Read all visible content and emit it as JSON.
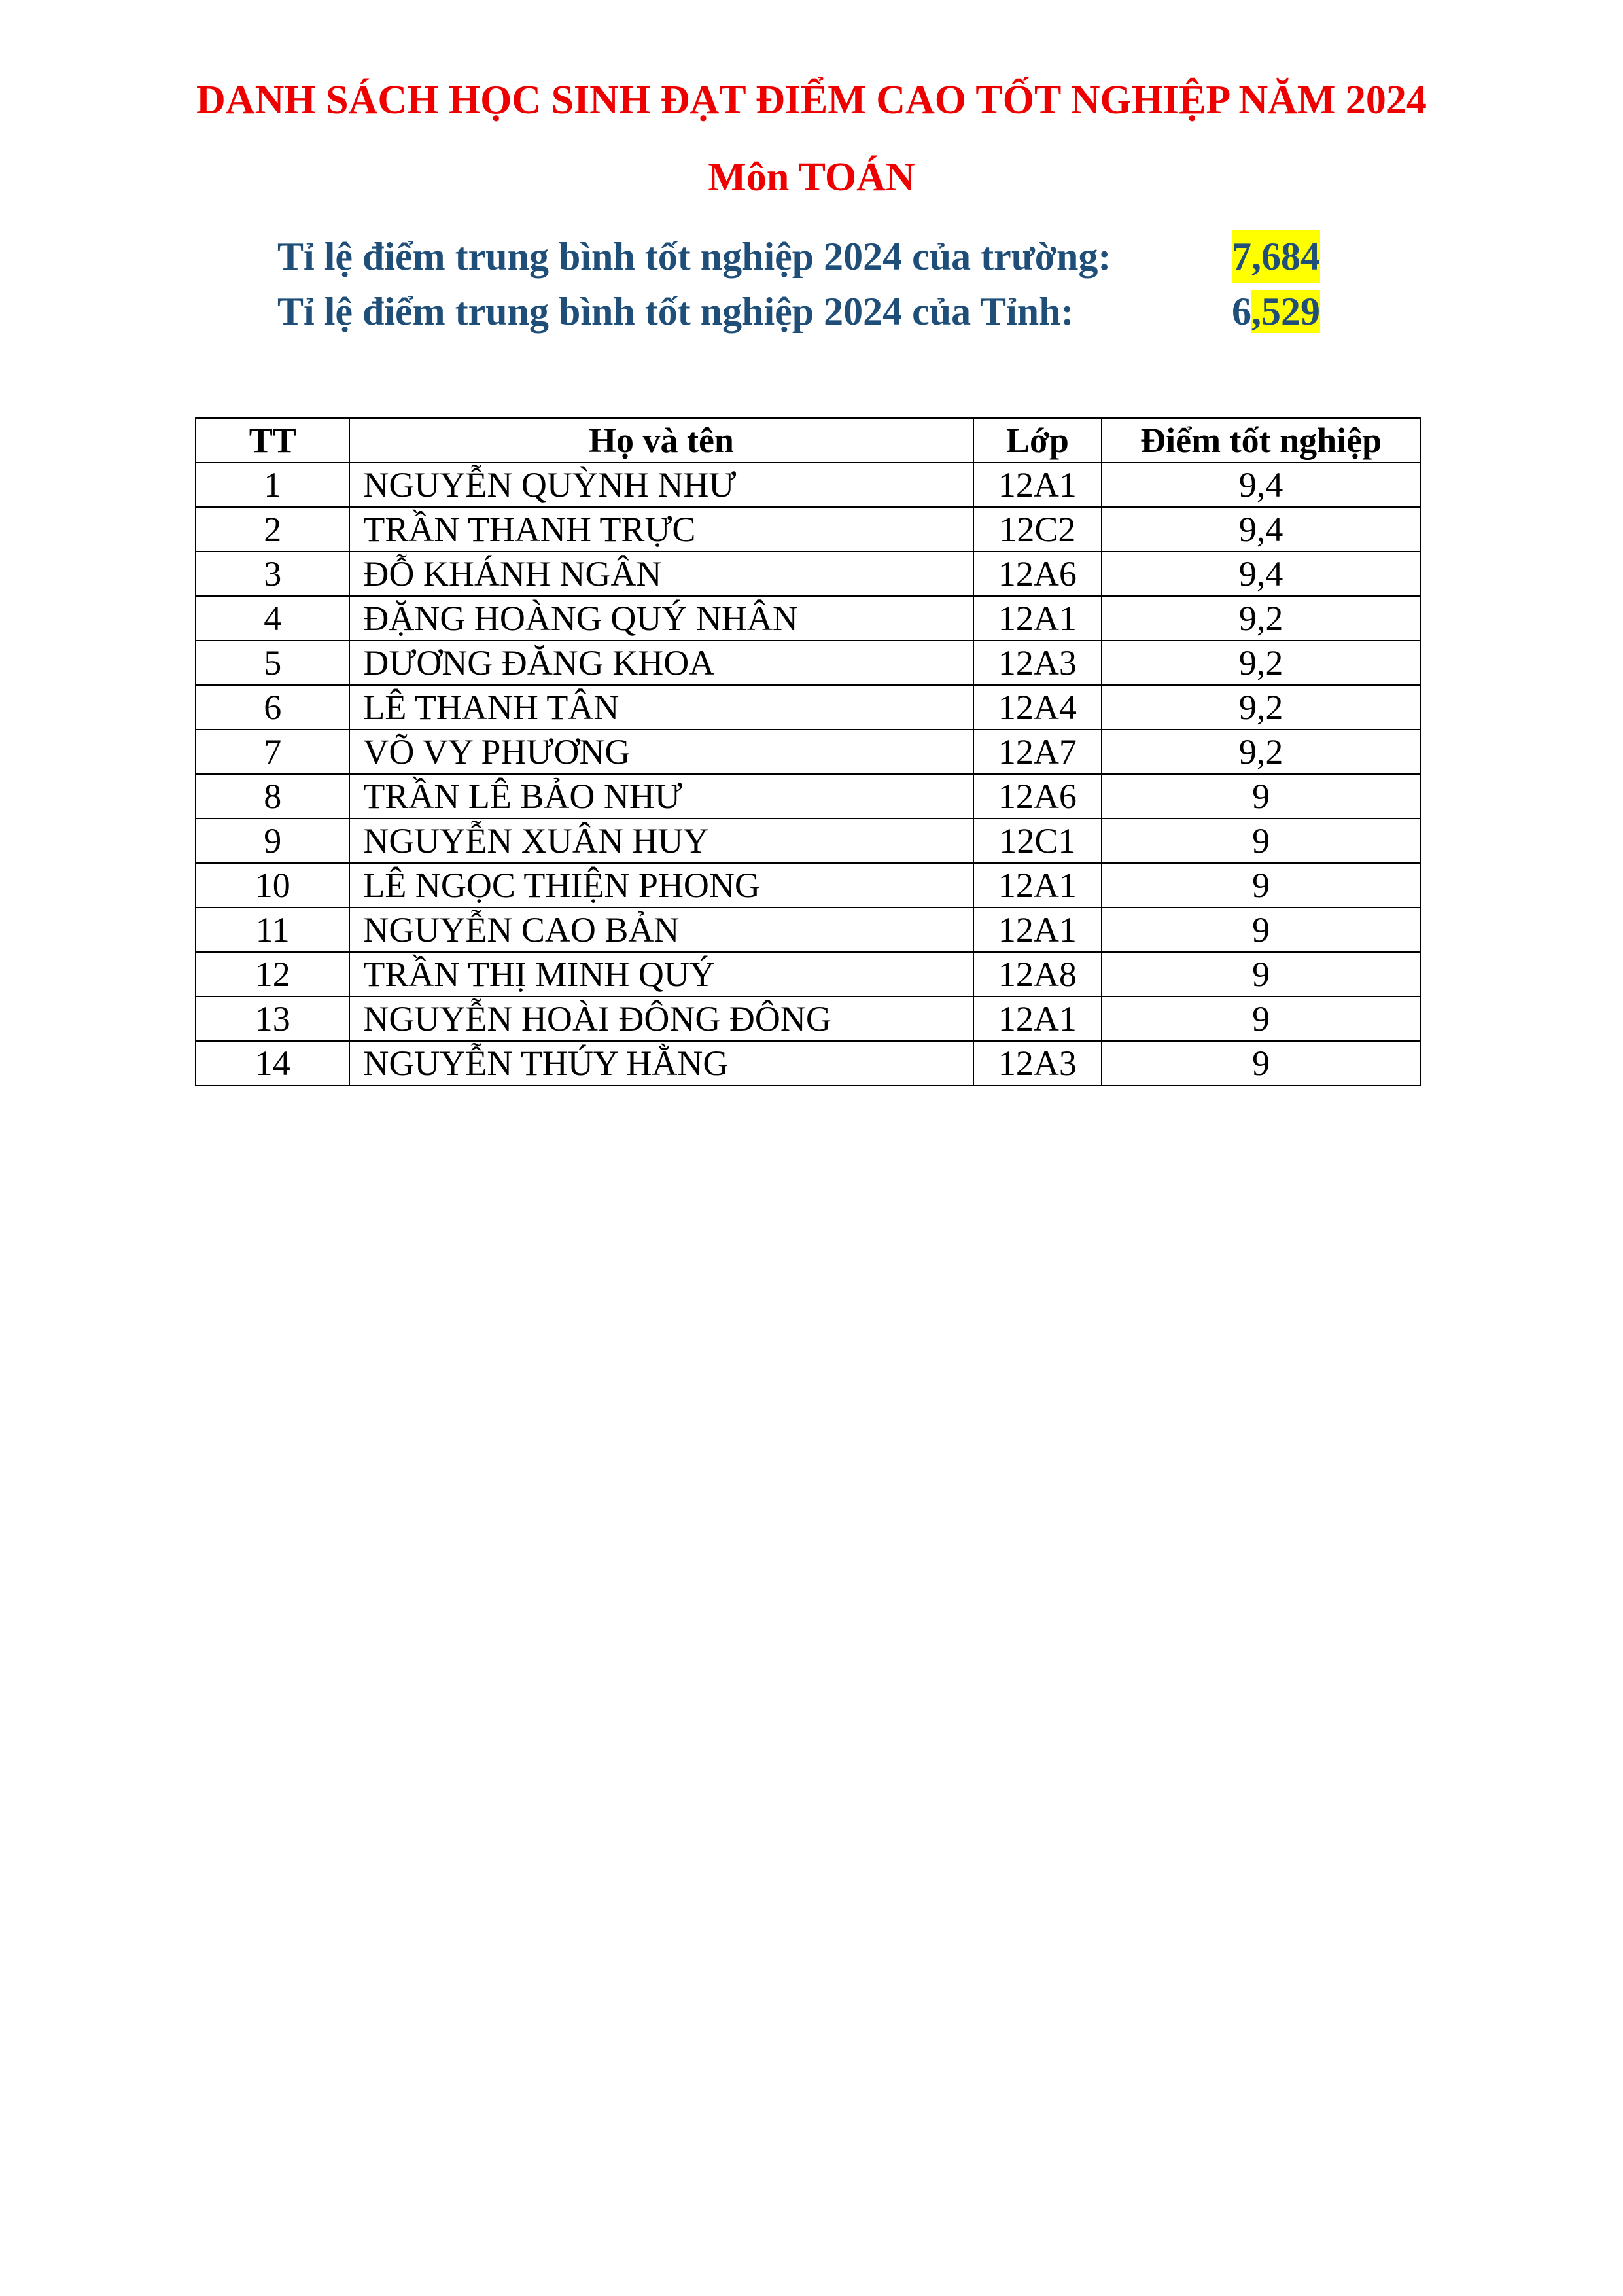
{
  "title": "DANH SÁCH HỌC SINH ĐẠT ĐIỂM CAO TỐT NGHIỆP NĂM 2024",
  "subject": "Môn TOÁN",
  "school_avg": {
    "label": "Tỉ lệ điểm trung bình tốt nghiệp 2024 của trường:",
    "value": "7,684"
  },
  "province_avg": {
    "label": "Tỉ lệ điểm trung bình tốt nghiệp 2024 của Tỉnh:",
    "value_plain": "6",
    "value_highlight": ",529"
  },
  "highlight_color": "#ffff00",
  "table": {
    "headers": [
      "TT",
      "Họ và tên",
      "Lớp",
      "Điểm tốt nghiệp"
    ],
    "rows": [
      [
        "1",
        "NGUYỄN QUỲNH NHƯ",
        "12A1",
        "9,4"
      ],
      [
        "2",
        "TRẦN THANH TRỰC",
        "12C2",
        "9,4"
      ],
      [
        "3",
        "ĐỖ KHÁNH NGÂN",
        "12A6",
        "9,4"
      ],
      [
        "4",
        "ĐẶNG HOÀNG QUÝ NHÂN",
        "12A1",
        "9,2"
      ],
      [
        "5",
        "DƯƠNG ĐĂNG KHOA",
        "12A3",
        "9,2"
      ],
      [
        "6",
        "LÊ THANH TÂN",
        "12A4",
        "9,2"
      ],
      [
        "7",
        "VÕ VY PHƯƠNG",
        "12A7",
        "9,2"
      ],
      [
        "8",
        "TRẦN LÊ BẢO NHƯ",
        "12A6",
        "9"
      ],
      [
        "9",
        "NGUYỄN XUÂN HUY",
        "12C1",
        "9"
      ],
      [
        "10",
        "LÊ NGỌC THIỆN PHONG",
        "12A1",
        "9"
      ],
      [
        "11",
        "NGUYỄN CAO BẢN",
        "12A1",
        "9"
      ],
      [
        "12",
        "TRẦN THỊ MINH QUÝ",
        "12A8",
        "9"
      ],
      [
        "13",
        "NGUYỄN HOÀI ĐÔNG ĐÔNG",
        "12A1",
        "9"
      ],
      [
        "14",
        "NGUYỄN THÚY HẰNG",
        "12A3",
        "9"
      ]
    ]
  }
}
